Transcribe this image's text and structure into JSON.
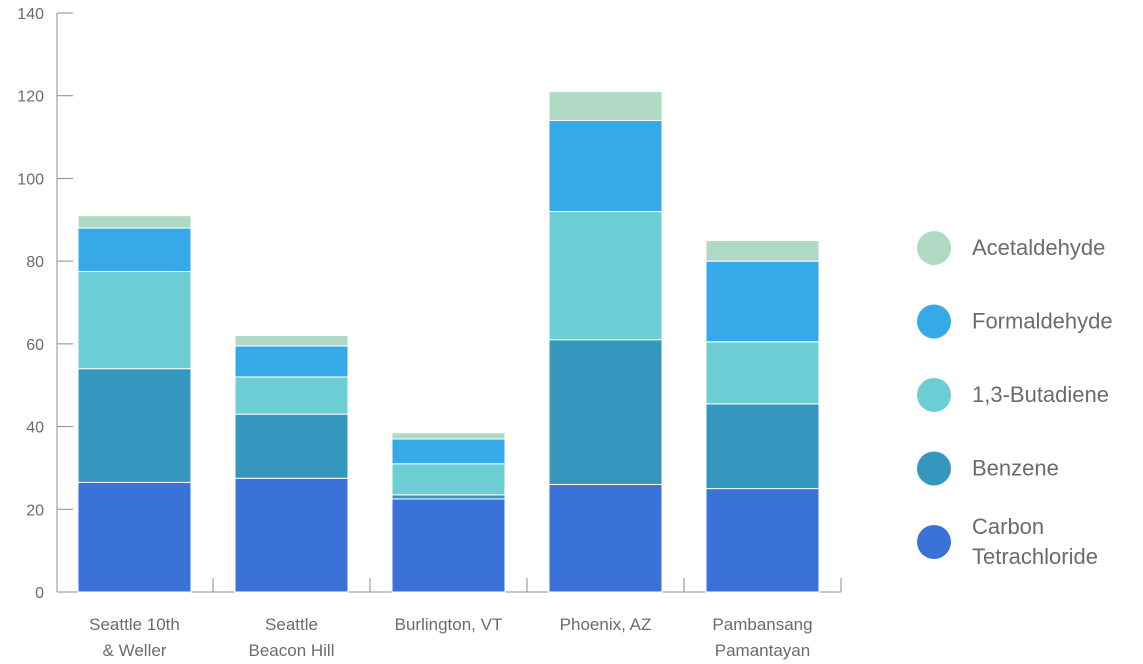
{
  "chart_data": {
    "type": "bar",
    "stacked": true,
    "categories": [
      [
        "Seattle 10th",
        "& Weller"
      ],
      [
        "Seattle",
        "Beacon Hill"
      ],
      [
        "Burlington, VT"
      ],
      [
        "Phoenix, AZ"
      ],
      [
        "Pambansang",
        "Pamantayan"
      ]
    ],
    "series": [
      {
        "name": "Carbon Tetrachloride",
        "legend_lines": [
          "Carbon",
          "Tetrachloride"
        ],
        "color": "#3a72d8",
        "values": [
          26.5,
          27.5,
          22.5,
          26,
          25
        ]
      },
      {
        "name": "Benzene",
        "legend_lines": [
          "Benzene"
        ],
        "color": "#3596be",
        "values": [
          27.5,
          15.5,
          1,
          35,
          20.5
        ]
      },
      {
        "name": "1,3-Butadiene",
        "legend_lines": [
          "1,3-Butadiene"
        ],
        "color": "#6ccdd4",
        "values": [
          23.5,
          9,
          7.5,
          31,
          15
        ]
      },
      {
        "name": "Formaldehyde",
        "legend_lines": [
          "Formaldehyde"
        ],
        "color": "#36a9e8",
        "values": [
          10.5,
          7.5,
          6,
          22,
          19.5
        ]
      },
      {
        "name": "Acetaldehyde",
        "legend_lines": [
          "Acetaldehyde"
        ],
        "color": "#b0d9c6",
        "values": [
          3,
          2.5,
          1.5,
          7,
          5
        ]
      }
    ],
    "ylim": [
      0,
      140
    ],
    "yticks": [
      0,
      20,
      40,
      60,
      80,
      100,
      120,
      140
    ],
    "legend_position": "right",
    "legend_order": [
      "Acetaldehyde",
      "Formaldehyde",
      "1,3-Butadiene",
      "Benzene",
      "Carbon Tetrachloride"
    ],
    "grid": false,
    "title": "",
    "xlabel": "",
    "ylabel": ""
  }
}
